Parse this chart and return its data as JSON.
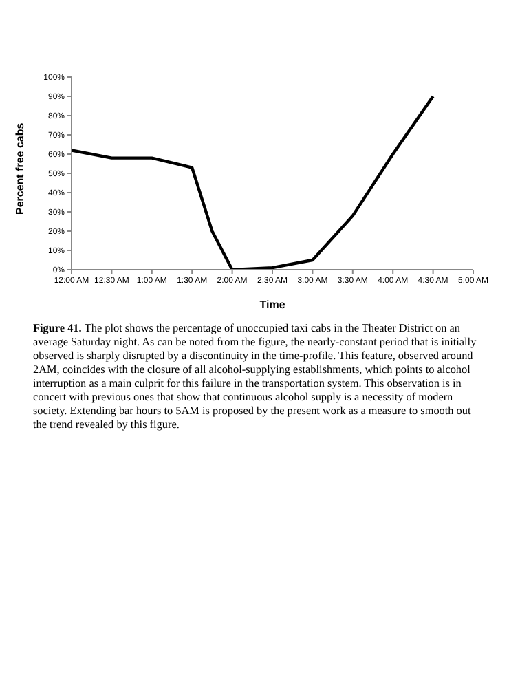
{
  "chart_data": {
    "type": "line",
    "xlabel": "Time",
    "ylabel": "Percent free cabs",
    "x": [
      0,
      0.5,
      1,
      1.5,
      1.75,
      2,
      2.5,
      3,
      3.5,
      4,
      4.5
    ],
    "series": [
      {
        "color": "#000000",
        "values": [
          62,
          58,
          58,
          53,
          20,
          0,
          1,
          5,
          28,
          60,
          90
        ]
      }
    ],
    "xlim": [
      0,
      5
    ],
    "xticks": [
      {
        "value": 0,
        "label": "12:00 AM"
      },
      {
        "value": 0.5,
        "label": "12:30 AM"
      },
      {
        "value": 1,
        "label": "1:00 AM"
      },
      {
        "value": 1.5,
        "label": "1:30 AM"
      },
      {
        "value": 2,
        "label": "2:00 AM"
      },
      {
        "value": 2.5,
        "label": "2:30 AM"
      },
      {
        "value": 3,
        "label": "3:00 AM"
      },
      {
        "value": 3.5,
        "label": "3:30 AM"
      },
      {
        "value": 4,
        "label": "4:00 AM"
      },
      {
        "value": 4.5,
        "label": "4:30 AM"
      },
      {
        "value": 5,
        "label": "5:00 AM"
      }
    ],
    "ylim": [
      0,
      100
    ],
    "yticks": [
      {
        "value": 0,
        "label": "0%"
      },
      {
        "value": 10,
        "label": "10%"
      },
      {
        "value": 20,
        "label": "20%"
      },
      {
        "value": 30,
        "label": "30%"
      },
      {
        "value": 40,
        "label": "40%"
      },
      {
        "value": 50,
        "label": "50%"
      },
      {
        "value": 60,
        "label": "60%"
      },
      {
        "value": 70,
        "label": "70%"
      },
      {
        "value": 80,
        "label": "80%"
      },
      {
        "value": 90,
        "label": "90%"
      },
      {
        "value": 100,
        "label": "100%"
      }
    ],
    "grid": false,
    "legend": false,
    "marker": "none",
    "line_style": "solid",
    "annotations": [
      "Figure 41.",
      "The plot shows the percentage of unoccupied taxi cabs in the Theater District on an average Saturday night. As can be noted from the figure, the nearly-constant period that is initially observed is sharply disrupted by a discontinuity in the time-profile. This feature, observed around 2AM, coincides with the closure of all alcohol-supplying establishments, which points to alcohol interruption as a main culprit for this failure in the transportation system. This observation is in concert with previous ones that show that continuous alcohol supply is a necessity of modern society. Extending bar hours to 5AM is proposed by the present work as a measure to smooth out the trend revealed by this figure."
    ]
  }
}
